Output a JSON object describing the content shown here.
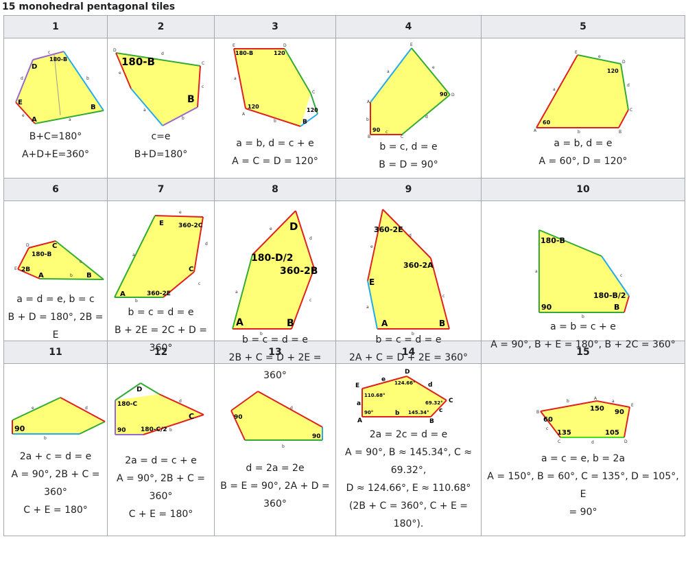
{
  "caption": "15 monohedral pentagonal tiles",
  "colors": {
    "fill": "#ffff77",
    "red": "#e02020",
    "green": "#33aa33",
    "blue": "#22aaee",
    "purple": "#9966cc"
  },
  "tiles": [
    {
      "number": "1",
      "lines": [
        "B+C=180°",
        "A+D+E=360°"
      ]
    },
    {
      "number": "2",
      "lines": [
        "c=e",
        "B+D=180°"
      ]
    },
    {
      "number": "3",
      "lines": [
        "a = b, d = c + e",
        "A = C = D = 120°"
      ]
    },
    {
      "number": "4",
      "lines": [
        "b = c, d = e",
        "B = D = 90°"
      ]
    },
    {
      "number": "5",
      "lines": [
        "a = b, d = e",
        "A = 60°, D = 120°"
      ]
    },
    {
      "number": "6",
      "lines": [
        "a = d = e, b = c",
        "B + D = 180°, 2B =",
        "E"
      ]
    },
    {
      "number": "7",
      "lines": [
        "b = c = d = e",
        "B + 2E = 2C + D =",
        "360°"
      ]
    },
    {
      "number": "8",
      "lines": [
        "b = c = d = e",
        "2B + C = D + 2E = 360°"
      ]
    },
    {
      "number": "9",
      "lines": [
        "b = c = d = e",
        "2A + C = D + 2E = 360°"
      ]
    },
    {
      "number": "10",
      "lines": [
        "a = b = c + e",
        "A = 90°, B + E = 180°, B + 2C = 360°"
      ]
    },
    {
      "number": "11",
      "lines": [
        "2a + c = d = e",
        "A = 90°, 2B + C =",
        "360°",
        "C + E = 180°"
      ]
    },
    {
      "number": "12",
      "lines": [
        "2a = d = c + e",
        "A = 90°, 2B + C =",
        "360°",
        "C + E = 180°"
      ]
    },
    {
      "number": "13",
      "lines": [
        "d = 2a = 2e",
        "B = E = 90°, 2A + D =",
        "360°"
      ]
    },
    {
      "number": "14",
      "lines": [
        "2a = 2c = d = e",
        "A = 90°, B ≈ 145.34°, C ≈",
        "69.32°,",
        "D ≈ 124.66°, E ≈ 110.68°",
        "(2B + C = 360°, C + E =",
        "180°)."
      ]
    },
    {
      "number": "15",
      "lines": [
        "a = c = e, b = 2a",
        "A = 150°, B = 60°, C = 135°, D = 105°, E",
        "= 90°"
      ]
    }
  ],
  "figures": {
    "t1": {
      "v": [
        "A",
        "B",
        "D",
        "E"
      ],
      "ang": [
        "180-B"
      ],
      "e": [
        "a",
        "b",
        "c",
        "d",
        "e"
      ]
    },
    "t2": {
      "v": [
        "B",
        "C",
        "D"
      ],
      "ang": [
        "180-B",
        "B"
      ],
      "e": [
        "a",
        "b",
        "c",
        "d",
        "e"
      ]
    },
    "t3": {
      "v": [
        "A",
        "B",
        "C",
        "D",
        "E"
      ],
      "ang": [
        "180-B",
        "120",
        "120",
        "120"
      ],
      "e": [
        "a",
        "b",
        "c",
        "d",
        "e"
      ]
    },
    "t4": {
      "v": [
        "A",
        "B",
        "C",
        "D",
        "E"
      ],
      "ang": [
        "90",
        "90"
      ],
      "e": [
        "a",
        "b",
        "c",
        "d",
        "e"
      ]
    },
    "t5": {
      "v": [
        "A",
        "B",
        "C",
        "D",
        "E"
      ],
      "ang": [
        "60",
        "120"
      ],
      "e": [
        "a",
        "b",
        "c",
        "d",
        "e"
      ]
    },
    "t6": {
      "v": [
        "A",
        "B",
        "C",
        "D",
        "E"
      ],
      "ang": [
        "A",
        "B",
        "C",
        "180-B",
        "2B"
      ],
      "e": [
        "a",
        "b",
        "c",
        "d",
        "e"
      ]
    },
    "t7": {
      "v": [
        "A",
        "B",
        "C",
        "D",
        "E"
      ],
      "ang": [
        "A",
        "360-2E",
        "C",
        "360-2C",
        "E"
      ],
      "e": [
        "a",
        "b",
        "c",
        "d",
        "e"
      ]
    },
    "t8": {
      "v": [
        "A",
        "B",
        "C",
        "D",
        "E"
      ],
      "ang": [
        "A",
        "B",
        "360-2B",
        "D",
        "180-D/2"
      ],
      "e": [
        "a",
        "b",
        "c",
        "d",
        "e"
      ]
    },
    "t9": {
      "v": [
        "A",
        "B",
        "C",
        "D",
        "E"
      ],
      "ang": [
        "A",
        "B",
        "360-2A",
        "360-2E",
        "E"
      ],
      "e": [
        "a",
        "b",
        "c",
        "d",
        "e"
      ]
    },
    "t10": {
      "v": [
        "A",
        "B",
        "C",
        "D",
        "E"
      ],
      "ang": [
        "90",
        "B",
        "180-B/2",
        "180-B"
      ],
      "e": [
        "a",
        "b",
        "c",
        "d",
        "e"
      ]
    },
    "t11": {
      "v": [
        "A",
        "B",
        "C",
        "D",
        "E"
      ],
      "ang": [
        "90"
      ],
      "e": [
        "a",
        "b",
        "c",
        "d",
        "e"
      ]
    },
    "t12": {
      "v": [
        "A",
        "B",
        "C",
        "D",
        "E"
      ],
      "ang": [
        "90",
        "180-C/2",
        "C",
        "D",
        "180-C"
      ],
      "e": [
        "a",
        "b",
        "c",
        "d",
        "e"
      ]
    },
    "t13": {
      "v": [
        "A",
        "B",
        "C",
        "D",
        "E"
      ],
      "ang": [
        "90",
        "90"
      ],
      "e": [
        "a",
        "b",
        "c",
        "d",
        "e"
      ]
    },
    "t14": {
      "v": [
        "A",
        "B",
        "C",
        "D",
        "E"
      ],
      "ang": [
        "90°",
        "145.34°",
        "69.32°",
        "124.66°",
        "110.68°"
      ],
      "e": [
        "a",
        "b",
        "c",
        "d",
        "e"
      ]
    },
    "t15": {
      "v": [
        "A",
        "B",
        "C",
        "D",
        "E"
      ],
      "ang": [
        "150",
        "60",
        "135",
        "105",
        "90"
      ],
      "e": [
        "a",
        "b",
        "c",
        "d",
        "e"
      ]
    }
  }
}
